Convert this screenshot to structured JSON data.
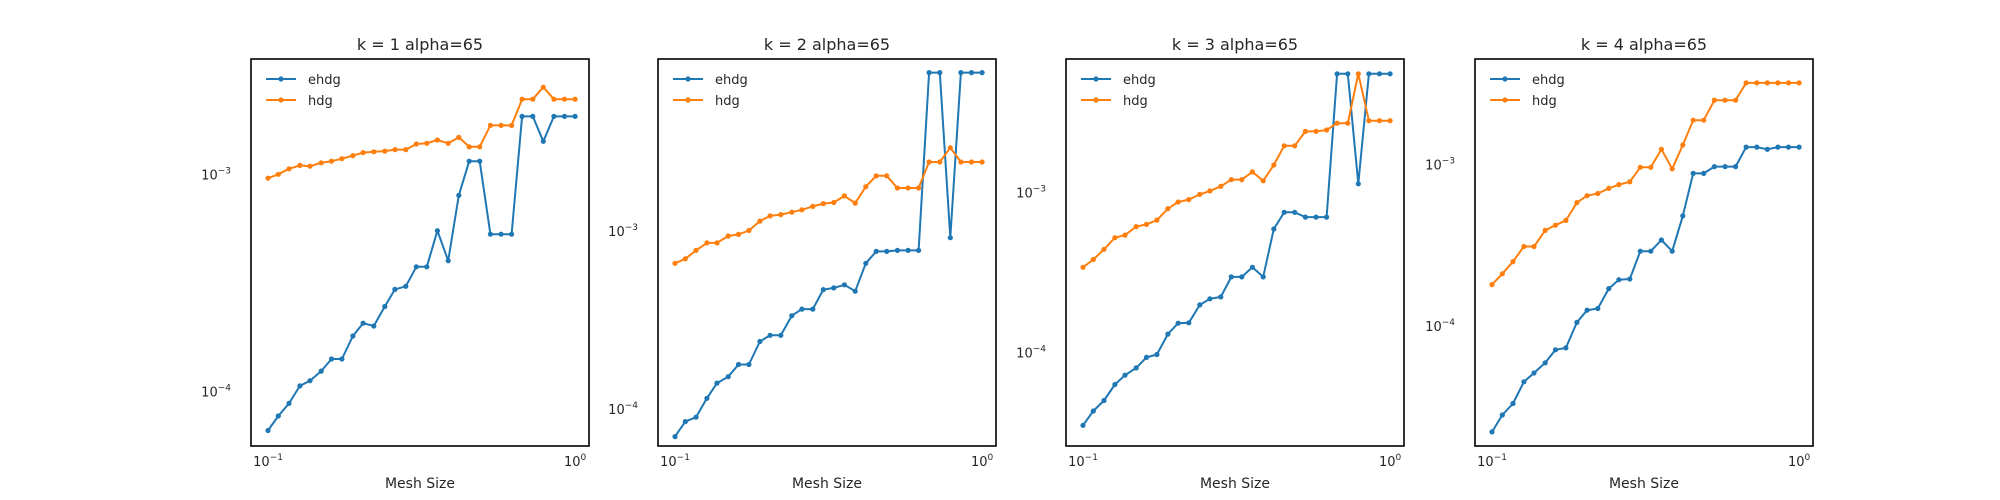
{
  "figure": {
    "colors": {
      "ehdg": "#1f77b4",
      "hdg": "#ff7f0e",
      "axes": "#000000"
    }
  },
  "chart_data": [
    {
      "type": "line",
      "title": "k = 1 alpha=65",
      "xlabel": "Mesh Size",
      "ylabel": "",
      "xscale": "log",
      "yscale": "log",
      "xlim": [
        0.088,
        1.11
      ],
      "ylim": [
        5.6e-05,
        0.0034
      ],
      "xticks": [
        {
          "value": 0.1,
          "base": "10",
          "exp": "−1"
        },
        {
          "value": 1,
          "base": "10",
          "exp": "0"
        }
      ],
      "yticks": [
        {
          "value": 0.0001,
          "base": "10",
          "exp": "−4"
        },
        {
          "value": 0.001,
          "base": "10",
          "exp": "−3"
        }
      ],
      "grid": false,
      "legend": "top-left",
      "x": [
        0.1,
        0.108,
        0.117,
        0.127,
        0.137,
        0.149,
        0.161,
        0.174,
        0.189,
        0.204,
        0.221,
        0.24,
        0.259,
        0.281,
        0.304,
        0.329,
        0.356,
        0.386,
        0.418,
        0.452,
        0.489,
        0.53,
        0.574,
        0.621,
        0.672,
        0.728,
        0.788,
        0.853,
        0.924,
        1.0
      ],
      "series": [
        {
          "name": "ehdg",
          "values": [
            6.6e-05,
            7.7e-05,
            8.8e-05,
            0.000106,
            0.000112,
            0.000124,
            0.000141,
            0.000141,
            0.00018,
            0.000206,
            0.0002,
            0.000246,
            0.000295,
            0.000305,
            0.000375,
            0.000375,
            0.00055,
            0.0004,
            0.0008,
            0.00115,
            0.00115,
            0.00053,
            0.00053,
            0.00053,
            0.00185,
            0.00185,
            0.00142,
            0.00185,
            0.00185,
            0.00185
          ]
        },
        {
          "name": "hdg",
          "values": [
            0.00096,
            0.001,
            0.00106,
            0.0011,
            0.00109,
            0.00113,
            0.00115,
            0.00118,
            0.00122,
            0.00126,
            0.00127,
            0.00128,
            0.0013,
            0.0013,
            0.00138,
            0.00139,
            0.00144,
            0.00139,
            0.00148,
            0.00134,
            0.00134,
            0.00168,
            0.00168,
            0.00168,
            0.00222,
            0.00222,
            0.00252,
            0.00222,
            0.00222,
            0.00222
          ]
        }
      ]
    },
    {
      "type": "line",
      "title": "k = 2 alpha=65",
      "xlabel": "Mesh Size",
      "ylabel": "",
      "xscale": "log",
      "yscale": "log",
      "xlim": [
        0.088,
        1.11
      ],
      "ylim": [
        6.2e-05,
        0.0093
      ],
      "xticks": [
        {
          "value": 0.1,
          "base": "10",
          "exp": "−1"
        },
        {
          "value": 1,
          "base": "10",
          "exp": "0"
        }
      ],
      "yticks": [
        {
          "value": 0.0001,
          "base": "10",
          "exp": "−4"
        },
        {
          "value": 0.001,
          "base": "10",
          "exp": "−3"
        }
      ],
      "grid": false,
      "legend": "top-left",
      "x": [
        0.1,
        0.108,
        0.117,
        0.127,
        0.137,
        0.149,
        0.161,
        0.174,
        0.189,
        0.204,
        0.221,
        0.24,
        0.259,
        0.281,
        0.304,
        0.329,
        0.356,
        0.386,
        0.418,
        0.452,
        0.489,
        0.53,
        0.574,
        0.621,
        0.672,
        0.728,
        0.788,
        0.853,
        0.924,
        1.0
      ],
      "series": [
        {
          "name": "ehdg",
          "values": [
            7e-05,
            8.5e-05,
            9e-05,
            0.000115,
            0.00014,
            0.000152,
            0.000178,
            0.000178,
            0.00024,
            0.00026,
            0.00026,
            0.000335,
            0.000365,
            0.000365,
            0.00047,
            0.00048,
            0.0005,
            0.00046,
            0.00066,
            0.00077,
            0.00077,
            0.00078,
            0.00078,
            0.00078,
            0.0078,
            0.0078,
            0.00092,
            0.0078,
            0.0078,
            0.0078
          ]
        },
        {
          "name": "hdg",
          "values": [
            0.00066,
            0.0007,
            0.00078,
            0.00086,
            0.00086,
            0.00094,
            0.00096,
            0.00101,
            0.00114,
            0.00122,
            0.00124,
            0.00128,
            0.00132,
            0.00138,
            0.00143,
            0.00145,
            0.00158,
            0.00144,
            0.00178,
            0.00205,
            0.00205,
            0.00175,
            0.00175,
            0.00175,
            0.00245,
            0.00245,
            0.00295,
            0.00245,
            0.00245,
            0.00245
          ]
        }
      ]
    },
    {
      "type": "line",
      "title": "k = 3 alpha=65",
      "xlabel": "Mesh Size",
      "ylabel": "",
      "xscale": "log",
      "yscale": "log",
      "xlim": [
        0.088,
        1.11
      ],
      "ylim": [
        2.6e-05,
        0.0068
      ],
      "xticks": [
        {
          "value": 0.1,
          "base": "10",
          "exp": "−1"
        },
        {
          "value": 1,
          "base": "10",
          "exp": "0"
        }
      ],
      "yticks": [
        {
          "value": 0.0001,
          "base": "10",
          "exp": "−4"
        },
        {
          "value": 0.001,
          "base": "10",
          "exp": "−3"
        }
      ],
      "grid": false,
      "legend": "top-left",
      "x": [
        0.1,
        0.108,
        0.117,
        0.127,
        0.137,
        0.149,
        0.161,
        0.174,
        0.189,
        0.204,
        0.221,
        0.24,
        0.259,
        0.281,
        0.304,
        0.329,
        0.356,
        0.386,
        0.418,
        0.452,
        0.489,
        0.53,
        0.574,
        0.621,
        0.672,
        0.728,
        0.788,
        0.853,
        0.924,
        1.0
      ],
      "series": [
        {
          "name": "ehdg",
          "values": [
            3.5e-05,
            4.3e-05,
            5e-05,
            6.3e-05,
            7.2e-05,
            8e-05,
            9.3e-05,
            9.7e-05,
            0.00013,
            0.000152,
            0.000153,
            0.000198,
            0.000216,
            0.000222,
            0.000296,
            0.000296,
            0.00034,
            0.000296,
            0.00059,
            0.00075,
            0.00075,
            0.0007,
            0.0007,
            0.0007,
            0.0055,
            0.0055,
            0.00113,
            0.0055,
            0.0055,
            0.0055
          ]
        },
        {
          "name": "hdg",
          "values": [
            0.00034,
            0.00038,
            0.00044,
            0.00052,
            0.00054,
            0.00061,
            0.00063,
            0.00067,
            0.00079,
            0.00087,
            0.0009,
            0.00097,
            0.00102,
            0.00109,
            0.0012,
            0.0012,
            0.00134,
            0.00118,
            0.00148,
            0.00195,
            0.00195,
            0.0024,
            0.0024,
            0.00245,
            0.0027,
            0.0027,
            0.0055,
            0.0028,
            0.0028,
            0.0028
          ]
        }
      ]
    },
    {
      "type": "line",
      "title": "k = 4 alpha=65",
      "xlabel": "Mesh Size",
      "ylabel": "",
      "xscale": "log",
      "yscale": "log",
      "xlim": [
        0.088,
        1.11
      ],
      "ylim": [
        1.8e-05,
        0.0045
      ],
      "xticks": [
        {
          "value": 0.1,
          "base": "10",
          "exp": "−1"
        },
        {
          "value": 1,
          "base": "10",
          "exp": "0"
        }
      ],
      "yticks": [
        {
          "value": 0.0001,
          "base": "10",
          "exp": "−4"
        },
        {
          "value": 0.001,
          "base": "10",
          "exp": "−3"
        }
      ],
      "grid": false,
      "legend": "top-left",
      "x": [
        0.1,
        0.108,
        0.117,
        0.127,
        0.137,
        0.149,
        0.161,
        0.174,
        0.189,
        0.204,
        0.221,
        0.24,
        0.259,
        0.281,
        0.304,
        0.329,
        0.356,
        0.386,
        0.418,
        0.452,
        0.489,
        0.53,
        0.574,
        0.621,
        0.672,
        0.728,
        0.788,
        0.853,
        0.924,
        1.0
      ],
      "series": [
        {
          "name": "ehdg",
          "values": [
            2.2e-05,
            2.8e-05,
            3.3e-05,
            4.5e-05,
            5.1e-05,
            5.9e-05,
            7.1e-05,
            7.3e-05,
            0.000105,
            0.000125,
            0.000128,
            0.00017,
            0.000193,
            0.000195,
            0.00029,
            0.00029,
            0.00034,
            0.00029,
            0.00048,
            0.00088,
            0.00088,
            0.00097,
            0.00097,
            0.00097,
            0.00128,
            0.00128,
            0.00124,
            0.00128,
            0.00128,
            0.00128
          ]
        },
        {
          "name": "hdg",
          "values": [
            0.00018,
            0.00021,
            0.00025,
            0.00031,
            0.00031,
            0.00039,
            0.00042,
            0.00045,
            0.00058,
            0.00064,
            0.00066,
            0.00071,
            0.00075,
            0.00078,
            0.00096,
            0.00096,
            0.00124,
            0.00094,
            0.00132,
            0.00188,
            0.00188,
            0.0025,
            0.0025,
            0.0025,
            0.0032,
            0.0032,
            0.0032,
            0.0032,
            0.0032,
            0.0032
          ]
        }
      ]
    }
  ]
}
